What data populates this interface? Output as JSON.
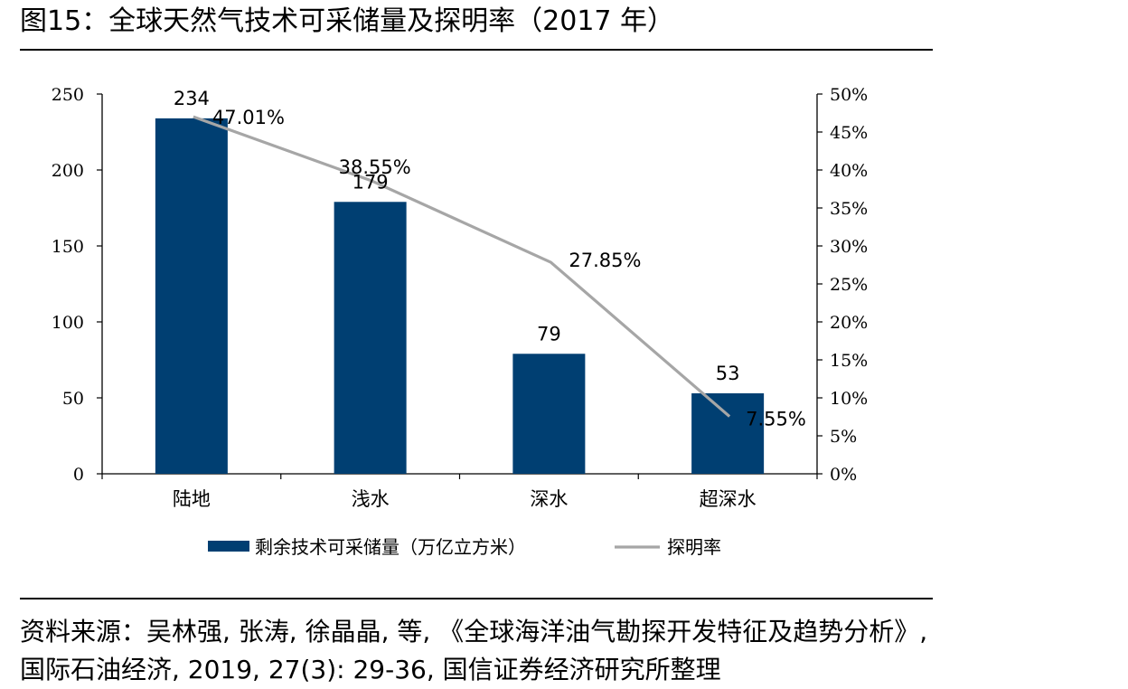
{
  "figure": {
    "title": "图15：全球天然气技术可采储量及探明率（2017 年）",
    "source": "资料来源：吴林强, 张涛, 徐晶晶, 等, 《全球海洋油气勘探开发特征及趋势分析》, 国际石油经济, 2019, 27(3): 29-36, 国信证券经济研究所整理"
  },
  "chart_data": {
    "type": "bar",
    "categories": [
      "陆地",
      "浅水",
      "深水",
      "超深水"
    ],
    "series": [
      {
        "name": "剩余技术可采储量（万亿立方米）",
        "type": "bar",
        "axis": "left",
        "values": [
          234,
          179,
          79,
          53
        ],
        "labels": [
          "234",
          "179",
          "79",
          "53"
        ],
        "color": "#003f72"
      },
      {
        "name": "探明率",
        "type": "line",
        "axis": "right",
        "values": [
          47.01,
          38.55,
          27.85,
          7.55
        ],
        "labels": [
          "47.01%",
          "38.55%",
          "27.85%",
          "7.55%"
        ],
        "color": "#a6a6a6"
      }
    ],
    "y_left": {
      "min": 0,
      "max": 250,
      "ticks": [
        "0",
        "50",
        "100",
        "150",
        "200",
        "250"
      ]
    },
    "y_right": {
      "min": 0,
      "max": 50,
      "ticks": [
        "0%",
        "5%",
        "10%",
        "15%",
        "20%",
        "25%",
        "30%",
        "35%",
        "40%",
        "45%",
        "50%"
      ]
    },
    "grid": false,
    "legend": "bottom"
  }
}
